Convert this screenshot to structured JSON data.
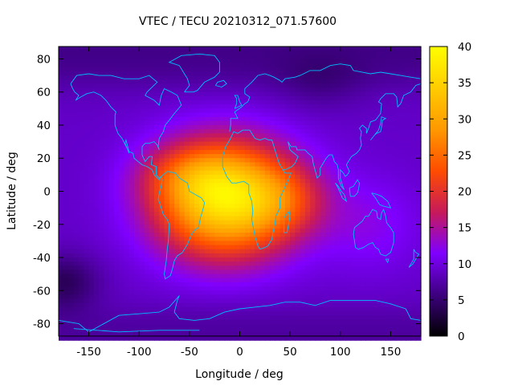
{
  "chart_data": {
    "type": "heatmap",
    "title": "VTEC / TECU 20210312_071.57600",
    "xlabel": "Longitude / deg",
    "ylabel": "Latitude / deg",
    "xlim": [
      -180,
      180
    ],
    "ylim": [
      -87.5,
      87.5
    ],
    "xticks": [
      -150,
      -100,
      -50,
      0,
      50,
      100,
      150
    ],
    "yticks": [
      -80,
      -60,
      -40,
      -20,
      0,
      20,
      40,
      60,
      80
    ],
    "colorbar": {
      "min": 0,
      "max": 40,
      "ticks": [
        0,
        5,
        10,
        15,
        20,
        25,
        30,
        35,
        40
      ],
      "palette": [
        "#000000",
        "#3d007f",
        "#7f00ff",
        "#c71a59",
        "#ff4d00",
        "#ff9900",
        "#ffcc00",
        "#ffff00"
      ]
    },
    "overlay": "coastlines",
    "overlay_color": "#00bfff",
    "field_features": [
      {
        "name": "main anomaly peak",
        "lon": -15,
        "lat": -5,
        "value": 37
      },
      {
        "name": "global background",
        "value": 9
      },
      {
        "name": "north polar low",
        "lat": 75,
        "value": 6
      },
      {
        "name": "south polar low",
        "lat": -80,
        "value": 7
      },
      {
        "name": "south pacific low",
        "lon": -175,
        "lat": -55,
        "value": 4
      }
    ]
  }
}
